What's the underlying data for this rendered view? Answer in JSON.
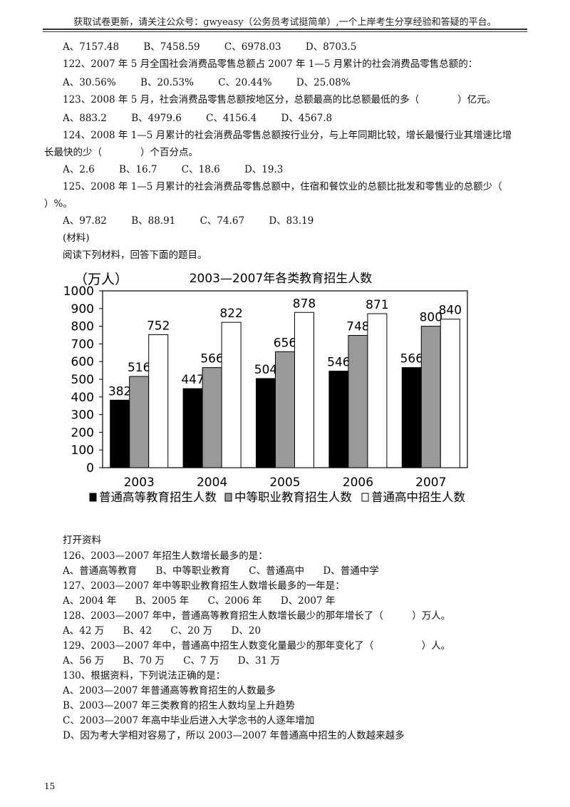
{
  "header": {
    "text": "获取试卷更新，请关注公众号：gwyeasy（公务员考试挺简单）,一个上岸考生分享经验和答疑的平台。"
  },
  "q121": {
    "options": [
      "A、7157.48",
      "B、7458.59",
      "C、6978.03",
      "D、8703.5"
    ]
  },
  "q122": {
    "stem": "122、2007 年 5 月全国社会消费品零售总额占 2007 年 1—5 月累计的社会消费品零售总额的：",
    "options": [
      "A、30.56%",
      "B、20.53%",
      "C、20.44%",
      "D、25.08%"
    ]
  },
  "q123": {
    "stem": "123、2008 年 5 月，社会消费品零售总额按地区分，总额最高的比总额最低的多（　　　　）亿元。",
    "options": [
      "A、883.2",
      "B、4979.6",
      "C、4156.4",
      "D、4567.8"
    ]
  },
  "q124": {
    "stem_line1": "124、2008 年 1—5 月累计的社会消费品零售总额按行业分，与上年同期比较，增长最慢行业其增速比增",
    "stem_line2": "长最快的少（　　　　）个百分点。",
    "options": [
      "A、2.6",
      "B、16.7",
      "C、18.6",
      "D、19.3"
    ]
  },
  "q125": {
    "stem_line1": "125、2008 年 1—5 月累计的社会消费品零售总额中，住宿和餐饮业的总额比批发和零售业的总额少（",
    "stem_line2": "）%。",
    "options": [
      "A、97.82",
      "B、88.91",
      "C、74.67",
      "D、83.19"
    ]
  },
  "material": {
    "label": "(材料)",
    "intro": "阅读下列材料，回答下面的题目。"
  },
  "chart_data": {
    "type": "bar",
    "title": "2003—2007年各类教育招生人数",
    "ylabel": "（万人）",
    "xlabel": "",
    "categories": [
      "2003",
      "2004",
      "2005",
      "2006",
      "2007"
    ],
    "ylim": [
      0,
      1000
    ],
    "yticks": [
      0,
      100,
      200,
      300,
      400,
      500,
      600,
      700,
      800,
      900,
      1000
    ],
    "series": [
      {
        "name": "普通高等教育招生人数",
        "values": [
          382,
          447,
          504,
          546,
          566
        ],
        "color": "#000000"
      },
      {
        "name": "中等职业教育招生人数",
        "values": [
          516,
          566,
          656,
          748,
          800
        ],
        "color": "#999999"
      },
      {
        "name": "普通高中招生人数",
        "values": [
          752,
          822,
          878,
          871,
          840
        ],
        "color": "#ffffff"
      }
    ],
    "legend": "bottom",
    "grid": false,
    "data_labels": true
  },
  "open_material": "打开资料",
  "q126": {
    "stem": "126、2003—2007 年招生人数增长最多的是：",
    "options": [
      "A、普通高等教育",
      "B、中等职业教育",
      "C、普通高中",
      "D、普通中学"
    ]
  },
  "q127": {
    "stem": "127、2003—2007 年中等职业教育招生人数增长最多的一年是：",
    "options": [
      "A、2004 年",
      "B、2005 年",
      "C、2006 年",
      "D、2007 年"
    ]
  },
  "q128": {
    "stem": "128、2003—2007 年中，普通高等教育招生人数增长最少的那年增长了（　　　）万人。",
    "options": [
      "A、42 万",
      "B、42",
      "C、20 万",
      "D、20"
    ]
  },
  "q129": {
    "stem": "129、2003—2007 年中，普通高中招生人数变化量最少的那年变化了（　　　　　）人。",
    "options": [
      "A、56 万",
      "B、70 万",
      "C、7 万",
      "D、31 万"
    ]
  },
  "q130": {
    "stem": "130、根据资料，下列说法正确的是：",
    "options": [
      "A、2003—2007 年普通高等教育招生的人数最多",
      "B、2003—2007 年三类教育的招生人数均呈上升趋势",
      "C、2003—2007 年高中毕业后进入大学念书的人逐年增加",
      "D、因为考大学相对容易了，所以 2003—2007 年普通高中招生的人数越来越多"
    ]
  },
  "page_number": "15"
}
